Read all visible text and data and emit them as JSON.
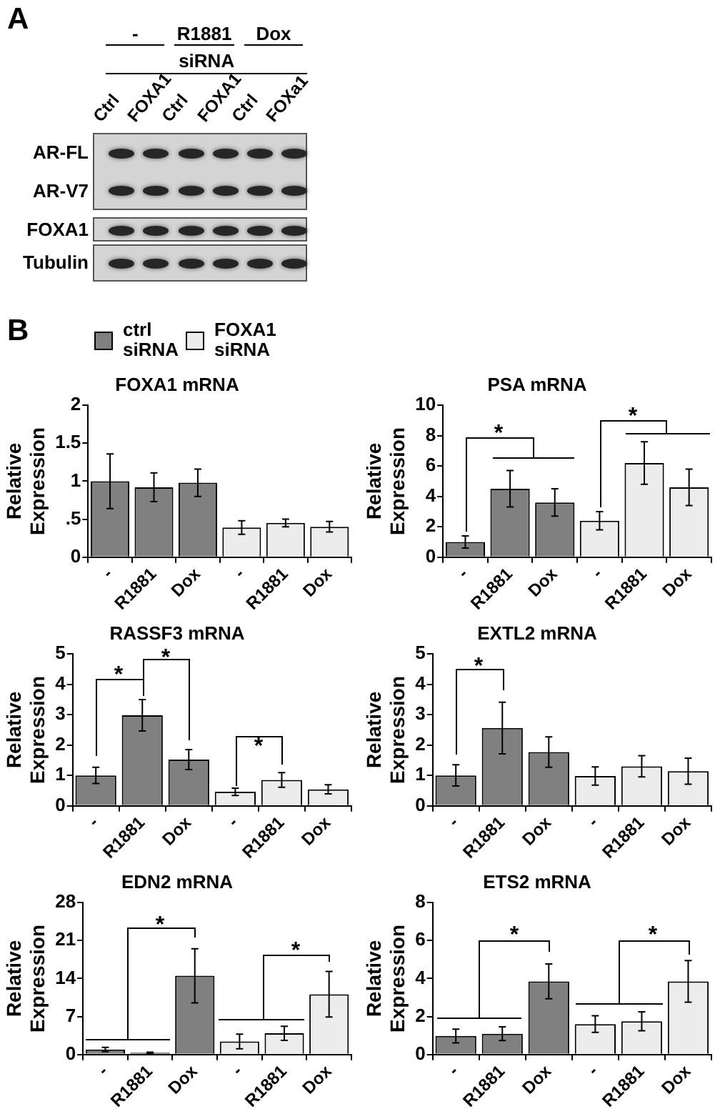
{
  "chart_data": [
    {
      "type": "other",
      "title": "A",
      "annotations": [
        "-",
        "R1881",
        "Dox",
        "siRNA"
      ],
      "categories": [
        "Ctrl",
        "FOXA1",
        "Ctrl",
        "FOXA1",
        "Ctrl",
        "FOXa1"
      ],
      "y_categories": [
        "AR-FL",
        "AR-V7",
        "FOXA1",
        "Tubulin"
      ]
    },
    {
      "type": "bar",
      "title": "FOXA1 mRNA",
      "ylabel": "Relative Expression",
      "categories": [
        "-",
        "R1881",
        "Dox",
        "-",
        "R1881",
        "Dox"
      ],
      "ylim": [
        0,
        2
      ],
      "yticks": [
        0,
        {
          "value": 0.5,
          "label": ".5"
        },
        1,
        1.5,
        2
      ],
      "legend": "top left",
      "annotations": [
        "B"
      ],
      "series": [
        {
          "name": "ctrl siRNA",
          "color": "#808080",
          "values": [
            1.0,
            0.92,
            0.98,
            null,
            null,
            null
          ],
          "errors": [
            0.36,
            0.19,
            0.18,
            null,
            null,
            null
          ]
        },
        {
          "name": "FOXA1 siRNA",
          "color": "#ececec",
          "values": [
            null,
            null,
            null,
            0.39,
            0.45,
            0.4
          ],
          "errors": [
            null,
            null,
            null,
            0.09,
            0.05,
            0.07
          ]
        }
      ]
    },
    {
      "type": "bar",
      "title": "PSA mRNA",
      "ylabel": "Relative Expression",
      "categories": [
        "-",
        "R1881",
        "Dox",
        "-",
        "R1881",
        "Dox"
      ],
      "ylim": [
        0,
        10
      ],
      "yticks": [
        0,
        2,
        4,
        6,
        8,
        10
      ],
      "annotations": [
        "*",
        "*"
      ],
      "series": [
        {
          "color": "#808080",
          "values": [
            1.0,
            4.5,
            3.6,
            null,
            null,
            null
          ],
          "errors": [
            0.4,
            1.2,
            0.9,
            null,
            null,
            null
          ]
        },
        {
          "color": "#ececec",
          "values": [
            null,
            null,
            null,
            2.4,
            6.2,
            4.6
          ],
          "errors": [
            null,
            null,
            null,
            0.6,
            1.4,
            1.2
          ]
        }
      ]
    },
    {
      "type": "bar",
      "title": "RASSF3 mRNA",
      "ylabel": "Relative Expression",
      "categories": [
        "-",
        "R1881",
        "Dox",
        "-",
        "R1881",
        "Dox"
      ],
      "ylim": [
        0,
        5
      ],
      "yticks": [
        0,
        1,
        2,
        3,
        4,
        5
      ],
      "annotations": [
        "*",
        "*",
        "*"
      ],
      "series": [
        {
          "color": "#808080",
          "values": [
            1.0,
            2.98,
            1.52,
            null,
            null,
            null
          ],
          "errors": [
            0.27,
            0.52,
            0.33,
            null,
            null,
            null
          ]
        },
        {
          "color": "#ececec",
          "values": [
            null,
            null,
            null,
            0.46,
            0.85,
            0.54
          ],
          "errors": [
            null,
            null,
            null,
            0.12,
            0.24,
            0.15
          ]
        }
      ]
    },
    {
      "type": "bar",
      "title": "EXTL2 mRNA",
      "ylabel": "Relative Expression",
      "categories": [
        "-",
        "R1881",
        "Dox",
        "-",
        "R1881",
        "Dox"
      ],
      "ylim": [
        0,
        5
      ],
      "yticks": [
        0,
        1,
        2,
        3,
        4,
        5
      ],
      "annotations": [
        "*"
      ],
      "series": [
        {
          "color": "#808080",
          "values": [
            1.0,
            2.56,
            1.77,
            null,
            null,
            null
          ],
          "errors": [
            0.35,
            0.85,
            0.5,
            null,
            null,
            null
          ]
        },
        {
          "color": "#ececec",
          "values": [
            null,
            null,
            null,
            0.98,
            1.3,
            1.14
          ],
          "errors": [
            null,
            null,
            null,
            0.3,
            0.35,
            0.43
          ]
        }
      ]
    },
    {
      "type": "bar",
      "title": "EDN2 mRNA",
      "ylabel": "Relative Expression",
      "categories": [
        "-",
        "R1881",
        "Dox",
        "-",
        "R1881",
        "Dox"
      ],
      "ylim": [
        0,
        28
      ],
      "yticks": [
        0,
        7,
        14,
        21,
        28
      ],
      "annotations": [
        "*",
        "*"
      ],
      "series": [
        {
          "color": "#808080",
          "values": [
            0.9,
            0.3,
            14.5,
            null,
            null,
            null
          ],
          "errors": [
            0.4,
            0.1,
            5.0,
            null,
            null,
            null
          ]
        },
        {
          "color": "#ececec",
          "values": [
            null,
            null,
            null,
            2.4,
            3.9,
            11.1
          ],
          "errors": [
            null,
            null,
            null,
            1.35,
            1.3,
            4.2
          ]
        }
      ]
    },
    {
      "type": "bar",
      "title": "ETS2 mRNA",
      "ylabel": "Relative Expression",
      "categories": [
        "-",
        "R1881",
        "Dox",
        "-",
        "R1881",
        "Dox"
      ],
      "ylim": [
        0,
        8
      ],
      "yticks": [
        0,
        2,
        4,
        6,
        8
      ],
      "annotations": [
        "*",
        "*"
      ],
      "series": [
        {
          "color": "#808080",
          "values": [
            0.97,
            1.09,
            3.85,
            null,
            null,
            null
          ],
          "errors": [
            0.36,
            0.36,
            0.92,
            null,
            null,
            null
          ]
        },
        {
          "color": "#ececec",
          "values": [
            null,
            null,
            null,
            1.6,
            1.75,
            3.85
          ],
          "errors": [
            null,
            null,
            null,
            0.44,
            0.5,
            1.1
          ]
        }
      ]
    }
  ]
}
